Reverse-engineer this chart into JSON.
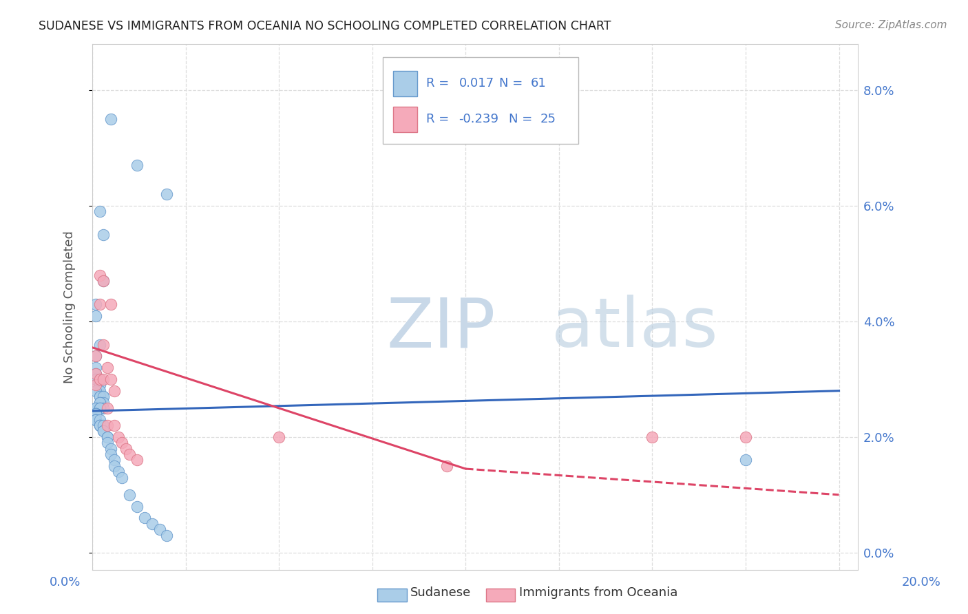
{
  "title": "SUDANESE VS IMMIGRANTS FROM OCEANIA NO SCHOOLING COMPLETED CORRELATION CHART",
  "source": "Source: ZipAtlas.com",
  "ylabel": "No Schooling Completed",
  "ytick_values": [
    0.0,
    0.02,
    0.04,
    0.06,
    0.08
  ],
  "xlim": [
    0.0,
    0.205
  ],
  "ylim": [
    -0.003,
    0.088
  ],
  "sudanese_x": [
    0.005,
    0.012,
    0.02,
    0.002,
    0.003,
    0.003,
    0.001,
    0.001,
    0.002,
    0.001,
    0.001,
    0.001,
    0.002,
    0.001,
    0.002,
    0.002,
    0.002,
    0.001,
    0.003,
    0.002,
    0.002,
    0.003,
    0.003,
    0.002,
    0.002,
    0.003,
    0.001,
    0.001,
    0.002,
    0.002,
    0.001,
    0.001,
    0.001,
    0.001,
    0.001,
    0.001,
    0.001,
    0.001,
    0.002,
    0.002,
    0.002,
    0.002,
    0.003,
    0.003,
    0.003,
    0.004,
    0.004,
    0.004,
    0.005,
    0.005,
    0.006,
    0.006,
    0.007,
    0.008,
    0.01,
    0.012,
    0.014,
    0.016,
    0.018,
    0.02,
    0.175
  ],
  "sudanese_y": [
    0.075,
    0.067,
    0.062,
    0.059,
    0.055,
    0.047,
    0.043,
    0.041,
    0.036,
    0.034,
    0.032,
    0.031,
    0.03,
    0.03,
    0.03,
    0.029,
    0.028,
    0.028,
    0.027,
    0.027,
    0.027,
    0.027,
    0.026,
    0.026,
    0.026,
    0.025,
    0.025,
    0.025,
    0.025,
    0.025,
    0.024,
    0.024,
    0.024,
    0.024,
    0.023,
    0.023,
    0.023,
    0.023,
    0.023,
    0.022,
    0.022,
    0.022,
    0.022,
    0.021,
    0.021,
    0.02,
    0.02,
    0.019,
    0.018,
    0.017,
    0.016,
    0.015,
    0.014,
    0.013,
    0.01,
    0.008,
    0.006,
    0.005,
    0.004,
    0.003,
    0.016
  ],
  "oceania_x": [
    0.001,
    0.001,
    0.001,
    0.002,
    0.002,
    0.002,
    0.003,
    0.003,
    0.003,
    0.004,
    0.004,
    0.004,
    0.005,
    0.005,
    0.006,
    0.006,
    0.007,
    0.008,
    0.009,
    0.01,
    0.012,
    0.05,
    0.095,
    0.15,
    0.175
  ],
  "oceania_y": [
    0.034,
    0.031,
    0.029,
    0.048,
    0.043,
    0.03,
    0.047,
    0.036,
    0.03,
    0.032,
    0.025,
    0.022,
    0.043,
    0.03,
    0.028,
    0.022,
    0.02,
    0.019,
    0.018,
    0.017,
    0.016,
    0.02,
    0.015,
    0.02,
    0.02
  ],
  "sudanese_color": "#aacde8",
  "sudanese_edge_color": "#6699cc",
  "oceania_color": "#f5aaba",
  "oceania_edge_color": "#dd7788",
  "sudanese_line_color": "#3366bb",
  "oceania_line_color": "#dd4466",
  "watermark_color": "#d8e8f0",
  "background_color": "#ffffff",
  "grid_color": "#dddddd",
  "title_color": "#222222",
  "tick_color": "#4477cc"
}
